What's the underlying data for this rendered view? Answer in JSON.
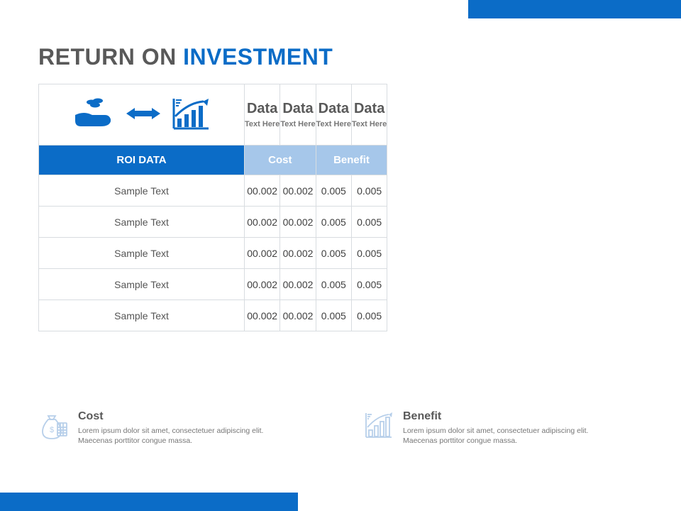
{
  "colors": {
    "blue": "#0b6cc7",
    "blue_surface": "#a6c7ea",
    "heading": "#595959",
    "muted": "#777777",
    "border": "#d8dce0",
    "page": "#ffffff"
  },
  "title": {
    "part1": "RETURN ON ",
    "part2": "INVESTMENT"
  },
  "table": {
    "type": "table",
    "data_cols": [
      {
        "heading": "Data",
        "sub": "Text Here"
      },
      {
        "heading": "Data",
        "sub": "Text Here"
      },
      {
        "heading": "Data",
        "sub": "Text Here"
      },
      {
        "heading": "Data",
        "sub": "Text Here"
      }
    ],
    "cat_labels": {
      "roi": "ROI DATA",
      "cost": "Cost",
      "benefit": "Benefit"
    },
    "rows": [
      {
        "label": "Sample Text",
        "c1": "00.002",
        "c2": "00.002",
        "b1": "0.005",
        "b2": "0.005",
        "b2_fade": true
      },
      {
        "label": "Sample Text",
        "c1": "00.002",
        "c2": "00.002",
        "b1": "0.005",
        "b2": "0.005"
      },
      {
        "label": "Sample Text",
        "c1": "00.002",
        "c2": "00.002",
        "b1": "0.005",
        "b2": "0.005"
      },
      {
        "label": "Sample Text",
        "c1": "00.002",
        "c2": "00.002",
        "b1": "0.005",
        "b2": "0.005"
      },
      {
        "label": "Sample Text",
        "c1": "00.002",
        "c2": "00.002",
        "b1": "0.005",
        "b2": "0.005"
      }
    ],
    "col_widths": {
      "label": 290
    },
    "row_heights": {
      "head": 86,
      "cat": 42,
      "body": 44
    }
  },
  "footer": {
    "cost": {
      "label": "Cost",
      "body": "Lorem ipsum dolor sit amet, consectetuer adipiscing elit. Maecenas porttitor congue massa."
    },
    "benefit": {
      "label": "Benefit",
      "body": "Lorem ipsum dolor sit amet, consectetuer adipiscing elit. Maecenas porttitor congue massa."
    }
  }
}
